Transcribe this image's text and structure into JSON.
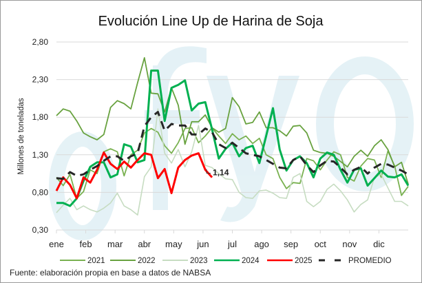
{
  "chart_data": {
    "type": "line",
    "title": "Evolución Line Up de Harina de Soja",
    "ylabel": "Millones de toneladas",
    "xlabel": "",
    "ylim": [
      0.3,
      2.8
    ],
    "yticks": [
      0.3,
      0.8,
      1.3,
      1.8,
      2.3,
      2.8
    ],
    "ytick_labels": [
      "0,30",
      "0,80",
      "1,30",
      "1,80",
      "2,30",
      "2,80"
    ],
    "x_unit": "week",
    "weeks": 53,
    "months": [
      "ene",
      "feb",
      "mar",
      "abr",
      "may",
      "jun",
      "jul",
      "ago",
      "sep",
      "oct",
      "nov",
      "dic"
    ],
    "grid": true,
    "legend_position": "bottom",
    "series": [
      {
        "name": "2021",
        "color": "#79b150",
        "width": 1.8,
        "dash": false,
        "values": [
          1.0,
          0.89,
          1.04,
          0.72,
          0.81,
          1.1,
          1.05,
          1.34,
          1.38,
          1.34,
          1.02,
          1.3,
          1.36,
          1.59,
          1.65,
          1.6,
          1.42,
          1.32,
          1.46,
          1.65,
          1.66,
          1.46,
          1.55,
          1.66,
          1.55,
          1.45,
          1.58,
          1.5,
          1.55,
          1.45,
          1.52,
          1.3,
          1.25,
          1.0,
          0.85,
          0.93,
          0.92,
          1.25,
          1.22,
          1.1,
          1.23,
          1.34,
          1.3,
          1.0,
          0.95,
          1.15,
          1.25,
          1.23,
          1.0,
          1.35,
          1.15,
          0.76,
          0.88
        ]
      },
      {
        "name": "2022",
        "color": "#68a23f",
        "width": 1.8,
        "dash": false,
        "values": [
          1.82,
          1.91,
          1.88,
          1.75,
          1.59,
          1.54,
          1.5,
          1.57,
          1.93,
          2.02,
          1.98,
          1.91,
          2.26,
          2.59,
          2.12,
          2.11,
          1.87,
          2.19,
          1.96,
          1.44,
          1.74,
          1.74,
          1.83,
          1.66,
          1.6,
          1.65,
          2.06,
          1.94,
          1.71,
          1.73,
          1.87,
          1.66,
          1.66,
          1.62,
          1.55,
          1.68,
          1.69,
          1.59,
          1.36,
          1.33,
          1.32,
          1.28,
          1.21,
          1.14,
          1.28,
          1.36,
          1.28,
          1.42,
          1.5,
          1.37,
          1.14,
          1.2,
          0.91
        ]
      },
      {
        "name": "2023",
        "color": "#c6dcc1",
        "width": 1.6,
        "dash": false,
        "values": [
          0.53,
          0.63,
          0.72,
          0.57,
          0.62,
          0.57,
          0.54,
          0.59,
          0.66,
          0.79,
          0.62,
          0.57,
          0.5,
          1.01,
          1.14,
          1.91,
          1.32,
          1.19,
          1.37,
          1.14,
          1.34,
          1.69,
          1.16,
          1.13,
          1.05,
          0.98,
          0.97,
          0.8,
          0.73,
          0.72,
          0.82,
          0.83,
          0.79,
          0.73,
          0.72,
          1.0,
          1.05,
          0.68,
          0.61,
          0.68,
          0.84,
          0.91,
          0.82,
          0.7,
          0.54,
          0.64,
          0.7,
          1.0,
          1.04,
          0.86,
          0.68,
          0.68,
          0.62
        ]
      },
      {
        "name": "2024",
        "color": "#00b050",
        "width": 3,
        "dash": false,
        "values": [
          0.66,
          0.66,
          0.62,
          0.72,
          0.95,
          1.14,
          1.2,
          1.2,
          1.0,
          1.04,
          1.44,
          1.41,
          1.2,
          1.23,
          2.42,
          2.42,
          1.75,
          2.19,
          2.23,
          2.29,
          1.89,
          1.98,
          2.0,
          1.64,
          1.25,
          1.38,
          1.46,
          1.28,
          1.39,
          1.42,
          1.19,
          1.55,
          1.92,
          1.37,
          1.09,
          1.23,
          1.28,
          1.19,
          1.0,
          1.25,
          1.33,
          1.3,
          1.1,
          0.93,
          1.1,
          1.12,
          0.89,
          0.99,
          1.09,
          1.01,
          1.0,
          1.04,
          0.89
        ]
      },
      {
        "name": "2025",
        "color": "#ff0000",
        "width": 3,
        "dash": false,
        "values": [
          0.82,
          1.0,
          0.9,
          0.72,
          1.0,
          0.93,
          1.1,
          1.33,
          1.18,
          1.11,
          1.21,
          1.13,
          1.23,
          1.32,
          1.3,
          0.99,
          1.11,
          0.79,
          1.13,
          1.23,
          1.29,
          1.32,
          1.1,
          1.0
        ]
      },
      {
        "name": "PROMEDIO",
        "color": "#262626",
        "width": 3,
        "dash": true,
        "values": [
          0.99,
          0.98,
          1.07,
          1.02,
          1.04,
          1.1,
          1.15,
          1.22,
          1.28,
          1.28,
          1.22,
          1.28,
          1.32,
          1.68,
          1.8,
          1.87,
          1.62,
          1.71,
          1.69,
          1.69,
          1.57,
          1.57,
          1.65,
          1.6,
          1.44,
          1.39,
          1.46,
          1.39,
          1.32,
          1.3,
          1.28,
          1.23,
          1.18,
          1.13,
          1.12,
          1.23,
          1.28,
          1.16,
          1.07,
          1.16,
          1.22,
          1.21,
          1.13,
          1.04,
          1.1,
          1.14,
          1.05,
          1.13,
          1.18,
          1.17,
          1.13,
          1.09,
          1.04
        ]
      }
    ],
    "annotations": [
      {
        "series": "2025",
        "text": "1,14"
      }
    ],
    "source": "Fuente: elaboración propia en base a datos de NABSA"
  },
  "watermark": "ofyo"
}
